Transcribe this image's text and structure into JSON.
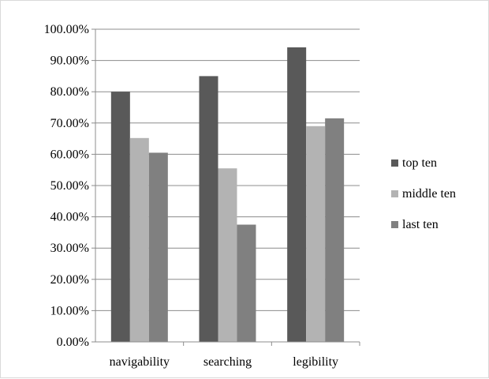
{
  "chart_data": {
    "type": "bar",
    "categories": [
      "navigability",
      "searching",
      "legibility"
    ],
    "series": [
      {
        "name": "top ten",
        "values": [
          80.0,
          85.0,
          94.2
        ],
        "color": "#595959"
      },
      {
        "name": "middle ten",
        "values": [
          65.2,
          55.5,
          69.0
        ],
        "color": "#b3b3b3"
      },
      {
        "name": "last ten",
        "values": [
          60.5,
          37.5,
          71.5
        ],
        "color": "#808080"
      }
    ],
    "ylim": [
      0,
      100
    ],
    "yticks": [
      "0.00%",
      "10.00%",
      "20.00%",
      "30.00%",
      "40.00%",
      "50.00%",
      "60.00%",
      "70.00%",
      "80.00%",
      "90.00%",
      "100.00%"
    ],
    "grid": true,
    "legend_position": "right"
  }
}
